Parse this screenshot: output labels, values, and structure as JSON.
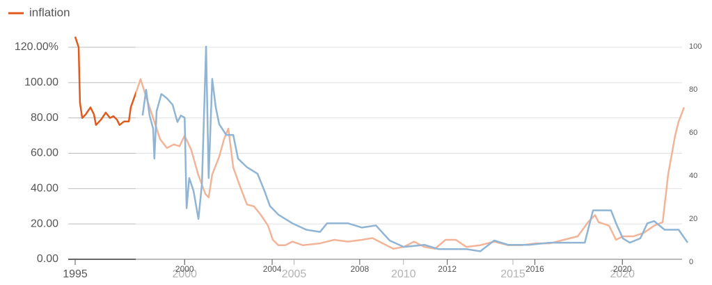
{
  "chart_data": [
    {
      "type": "line",
      "x": [
        1995.0,
        1995.16,
        1995.22,
        1995.32,
        1995.48,
        1995.7,
        1995.86,
        1995.95,
        1996.18,
        1996.4,
        1996.59,
        1996.75,
        1996.91,
        1997.03,
        1997.23,
        1997.45,
        1997.54,
        1997.77,
        1997.99,
        1998.24,
        1998.56,
        1998.88,
        1999.19,
        1999.51,
        1999.77,
        2000.0,
        2000.3,
        2000.62,
        2000.95,
        2001.1,
        2001.26,
        2001.58,
        2001.8,
        2002.0,
        2002.22,
        2002.54,
        2002.85,
        2003.17,
        2003.49,
        2003.81,
        2004.03,
        2004.28,
        2004.6,
        2004.92,
        2005.4,
        2006.19,
        2006.83,
        2007.46,
        2008.1,
        2008.58,
        2009.05,
        2009.53,
        2010.01,
        2010.48,
        2010.96,
        2011.44,
        2011.92,
        2012.39,
        2012.87,
        2013.51,
        2014.14,
        2014.78,
        2015.41,
        2016.05,
        2016.69,
        2017.32,
        2017.96,
        2018.43,
        2018.75,
        2018.91,
        2019.39,
        2019.71,
        2020.02,
        2020.5,
        2020.98,
        2021.45,
        2021.84,
        2022.09,
        2022.41,
        2022.57,
        2022.82
      ],
      "series": [
        {
          "name": "inflation",
          "color": "#e05a1c",
          "values": [
            126,
            120,
            88.6,
            80,
            82,
            86,
            82,
            76,
            79,
            83,
            80,
            81,
            79,
            76,
            78,
            78,
            86,
            94,
            102,
            92,
            80,
            68,
            63,
            65,
            64,
            70,
            62,
            48,
            37,
            35,
            48,
            58,
            68,
            74,
            52,
            41,
            31,
            30,
            25,
            19,
            11,
            8,
            8,
            10,
            8,
            9,
            11,
            10,
            11,
            12,
            9,
            6,
            7,
            10,
            7,
            6,
            11,
            11,
            7,
            8,
            10,
            8,
            8,
            9,
            9,
            11,
            13,
            21,
            25,
            21,
            19,
            11,
            13,
            13,
            15,
            19,
            21,
            48,
            70,
            78,
            86
          ]
        }
      ],
      "xlim": [
        1995,
        2023
      ],
      "xticks": [
        1995,
        2000,
        2005,
        2010,
        2015,
        2020
      ],
      "ylim": [
        0,
        120
      ],
      "yticks": [
        {
          "value": 0,
          "label": "0.00"
        },
        {
          "value": 20,
          "label": "20.00"
        },
        {
          "value": 40,
          "label": "40.00"
        },
        {
          "value": 60,
          "label": "60.00"
        },
        {
          "value": 80,
          "label": "80.00"
        },
        {
          "value": 100,
          "label": "100.00"
        },
        {
          "value": 120,
          "label": "120.00%"
        }
      ],
      "grid": true
    },
    {
      "type": "line",
      "x": [
        1998.08,
        1998.24,
        1998.4,
        1998.56,
        1998.62,
        1998.72,
        1998.94,
        1999.19,
        1999.45,
        1999.67,
        1999.83,
        2000.0,
        2000.09,
        2000.21,
        2000.41,
        2000.63,
        2000.79,
        2000.98,
        2001.1,
        2001.26,
        2001.42,
        2001.58,
        2001.9,
        2002.22,
        2002.44,
        2002.85,
        2003.33,
        2003.65,
        2003.9,
        2004.28,
        2004.92,
        2005.56,
        2006.19,
        2006.51,
        2007.46,
        2008.1,
        2008.74,
        2009.37,
        2010.01,
        2010.96,
        2011.6,
        2012.87,
        2013.51,
        2014.14,
        2014.78,
        2015.73,
        2016.69,
        2018.28,
        2018.66,
        2019.48,
        2019.71,
        2020.02,
        2020.34,
        2020.82,
        2021.14,
        2021.45,
        2021.93,
        2022.57,
        2022.98
      ],
      "series": [
        {
          "color": "#8fb4d4",
          "values": [
            68,
            80,
            68,
            62,
            48,
            70,
            78,
            76,
            73,
            65,
            68,
            67,
            25,
            39,
            33,
            20,
            36,
            100,
            39,
            85,
            72,
            64,
            59,
            59,
            48,
            44,
            41,
            33,
            26,
            22,
            18,
            15,
            14,
            18,
            18,
            16,
            17,
            10,
            7,
            8,
            6,
            6,
            5,
            10,
            8,
            8,
            9,
            9,
            24,
            24,
            18,
            11,
            9,
            11,
            18,
            19,
            15,
            15,
            9
          ]
        }
      ],
      "xlim": [
        1995,
        2023
      ],
      "xticks": [
        2000,
        2004,
        2008,
        2012,
        2016,
        2020
      ],
      "ylim": [
        0,
        100
      ],
      "yticks": [
        0,
        20,
        40,
        60,
        80,
        100
      ],
      "yaxis_side": "right"
    }
  ]
}
